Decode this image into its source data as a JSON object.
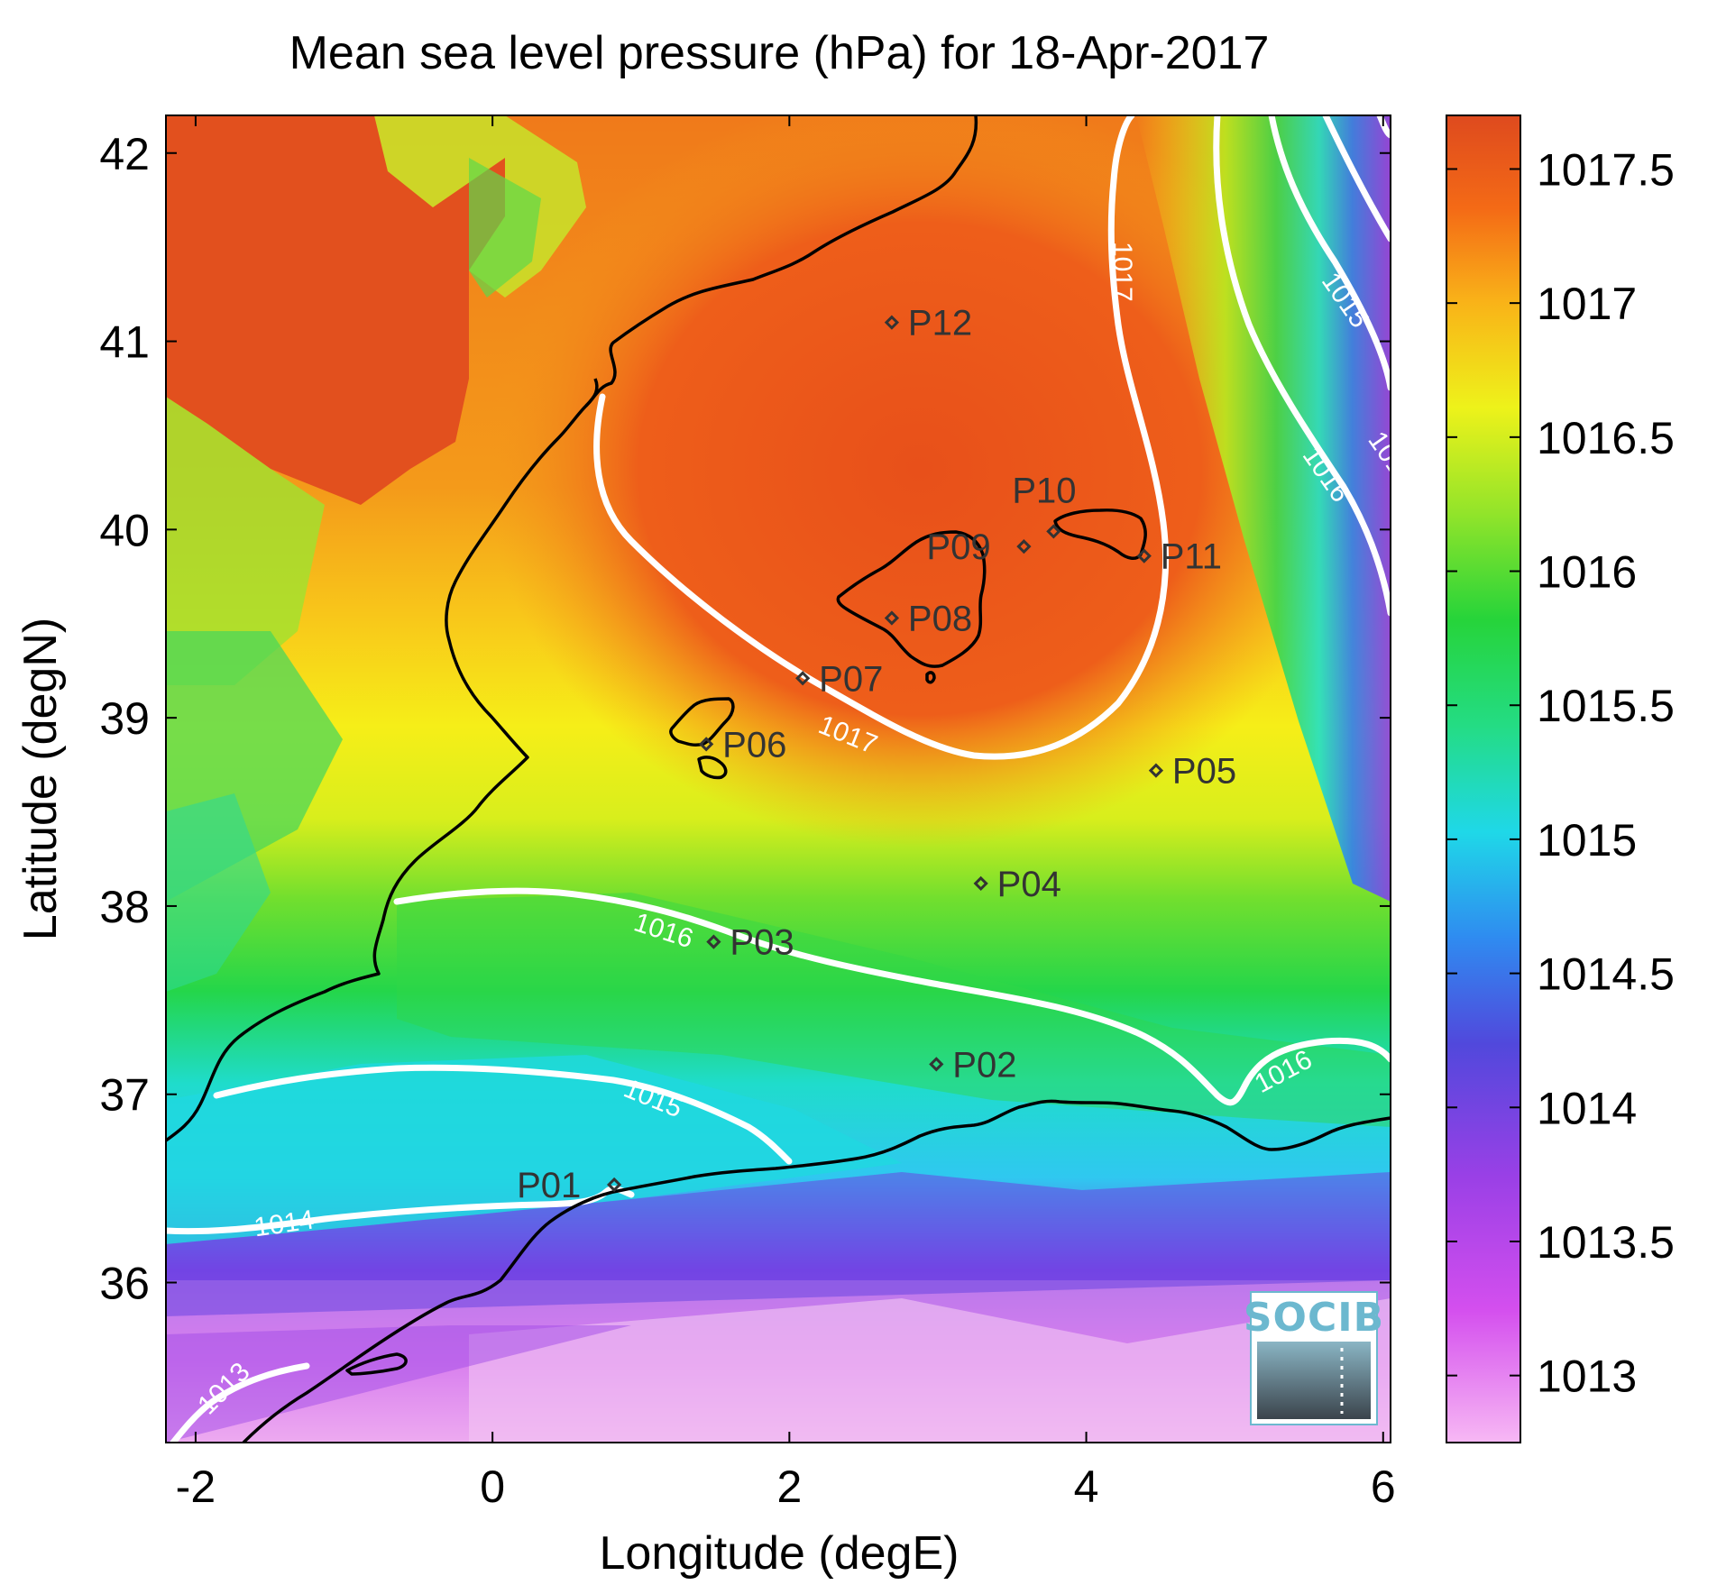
{
  "title": "Mean sea level pressure (hPa) for 18-Apr-2017",
  "xlabel": "Longitude (degE)",
  "ylabel": "Latitude (degN)",
  "x_ticks": [
    -2,
    0,
    2,
    4,
    6
  ],
  "y_ticks": [
    36,
    37,
    38,
    39,
    40,
    41,
    42
  ],
  "x_tick_labels": [
    "-2",
    "0",
    "2",
    "4",
    "6"
  ],
  "y_tick_labels": [
    "36",
    "37",
    "38",
    "39",
    "40",
    "41",
    "42"
  ],
  "colorbar": {
    "labels": [
      "1013",
      "1013.5",
      "1014",
      "1014.5",
      "1015",
      "1015.5",
      "1016",
      "1016.5",
      "1017",
      "1017.5"
    ],
    "values": [
      1013,
      1013.5,
      1014,
      1014.5,
      1015,
      1015.5,
      1016,
      1016.5,
      1017,
      1017.5
    ]
  },
  "stations": [
    {
      "name": "P01",
      "lon": 0.82,
      "lat": 36.52
    },
    {
      "name": "P02",
      "lon": 2.99,
      "lat": 37.16
    },
    {
      "name": "P03",
      "lon": 1.49,
      "lat": 37.81
    },
    {
      "name": "P04",
      "lon": 3.29,
      "lat": 38.12
    },
    {
      "name": "P05",
      "lon": 4.47,
      "lat": 38.72
    },
    {
      "name": "P06",
      "lon": 1.44,
      "lat": 38.86
    },
    {
      "name": "P07",
      "lon": 2.09,
      "lat": 39.21
    },
    {
      "name": "P08",
      "lon": 2.69,
      "lat": 39.53
    },
    {
      "name": "P09",
      "lon": 3.58,
      "lat": 39.91
    },
    {
      "name": "P10",
      "lon": 3.78,
      "lat": 39.99
    },
    {
      "name": "P11",
      "lon": 4.39,
      "lat": 39.86
    },
    {
      "name": "P12",
      "lon": 2.69,
      "lat": 41.1
    }
  ],
  "contour_labels": [
    "1013",
    "1014",
    "1015",
    "1016",
    "1016",
    "1016",
    "1017",
    "1017",
    "1015",
    "1016"
  ],
  "logo_text": "SOCIB",
  "chart_data": {
    "type": "heatmap",
    "title": "Mean sea level pressure (hPa) for 18-Apr-2017",
    "xlabel": "Longitude (degE)",
    "ylabel": "Latitude (degN)",
    "xlim": [
      -2.2,
      6.05
    ],
    "ylim": [
      35.15,
      42.2
    ],
    "clim": [
      1012.75,
      1017.7
    ],
    "colormap": "rainbow (pink-purple-blue-cyan-green-yellow-orange-red)",
    "contour_levels": [
      1013,
      1014,
      1015,
      1016,
      1017
    ],
    "stations": [
      "P01",
      "P02",
      "P03",
      "P04",
      "P05",
      "P06",
      "P07",
      "P08",
      "P09",
      "P10",
      "P11",
      "P12"
    ]
  }
}
